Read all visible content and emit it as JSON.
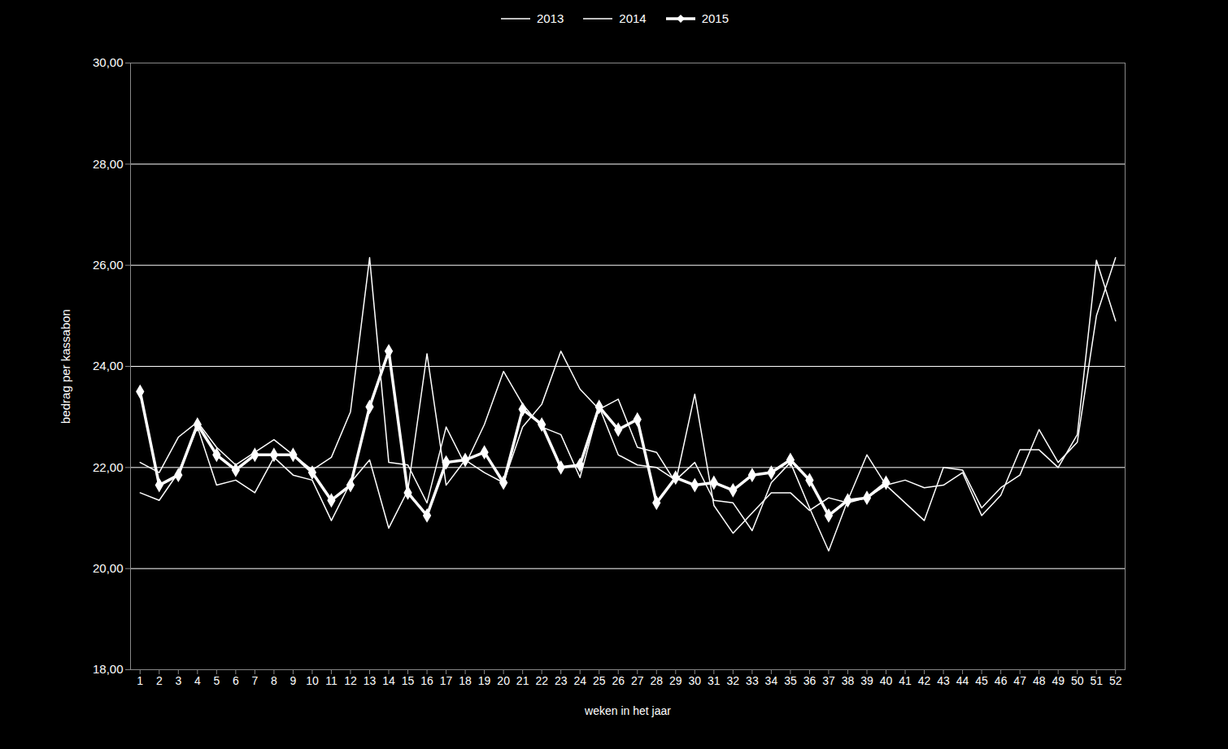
{
  "chart_data": {
    "type": "line",
    "x_label": "weken in het jaar",
    "y_label": "bedrag per kassabon",
    "x": [
      1,
      2,
      3,
      4,
      5,
      6,
      7,
      8,
      9,
      10,
      11,
      12,
      13,
      14,
      15,
      16,
      17,
      18,
      19,
      20,
      21,
      22,
      23,
      24,
      25,
      26,
      27,
      28,
      29,
      30,
      31,
      32,
      33,
      34,
      35,
      36,
      37,
      38,
      39,
      40,
      41,
      42,
      43,
      44,
      45,
      46,
      47,
      48,
      49,
      50,
      51,
      52
    ],
    "xlim": [
      0.5,
      52.5
    ],
    "xticks": [
      1,
      2,
      3,
      4,
      5,
      6,
      7,
      8,
      9,
      10,
      11,
      12,
      13,
      14,
      15,
      16,
      17,
      18,
      19,
      20,
      21,
      22,
      23,
      24,
      25,
      26,
      27,
      28,
      29,
      30,
      31,
      32,
      33,
      34,
      35,
      36,
      37,
      38,
      39,
      40,
      41,
      42,
      43,
      44,
      45,
      46,
      47,
      48,
      49,
      50,
      51,
      52
    ],
    "ylim": [
      18,
      30
    ],
    "yticks": [
      {
        "value": 18,
        "label": "18,00"
      },
      {
        "value": 20,
        "label": "20,00"
      },
      {
        "value": 22,
        "label": "22,00"
      },
      {
        "value": 24,
        "label": "24,00"
      },
      {
        "value": 26,
        "label": "26,00"
      },
      {
        "value": 28,
        "label": "28,00"
      },
      {
        "value": 30,
        "label": "30,00"
      }
    ],
    "grid": true,
    "legend": "top",
    "series": [
      {
        "name": "2013",
        "color": "#ffffff",
        "values": [
          22.1,
          21.9,
          22.6,
          22.9,
          22.4,
          22.05,
          22.3,
          22.55,
          22.25,
          21.95,
          22.2,
          23.1,
          26.15,
          22.1,
          22.05,
          21.3,
          22.8,
          22.05,
          22.85,
          23.9,
          23.25,
          22.8,
          22.65,
          21.8,
          23.2,
          22.25,
          22.05,
          22.0,
          21.75,
          22.1,
          21.35,
          21.3,
          20.75,
          21.7,
          22.1,
          21.2,
          20.35,
          21.35,
          22.25,
          21.65,
          21.75,
          21.6,
          21.65,
          21.9,
          21.05,
          21.45,
          22.35,
          22.35,
          22.0,
          22.65,
          26.1,
          24.9
        ]
      },
      {
        "name": "2014",
        "color": "#ffffff",
        "values": [
          21.5,
          21.35,
          21.9,
          22.8,
          21.65,
          21.75,
          21.5,
          22.2,
          21.85,
          21.75,
          20.95,
          21.7,
          22.15,
          20.8,
          21.55,
          24.25,
          21.65,
          22.15,
          21.9,
          21.7,
          22.8,
          23.25,
          24.3,
          23.55,
          23.15,
          23.35,
          22.4,
          22.3,
          21.7,
          23.45,
          21.25,
          20.7,
          21.1,
          21.5,
          21.5,
          21.15,
          21.4,
          21.3,
          21.4,
          21.65,
          21.3,
          20.95,
          22.0,
          21.95,
          21.2,
          21.6,
          21.85,
          22.75,
          22.1,
          22.5,
          25.0,
          26.15
        ]
      },
      {
        "name": "2015",
        "color": "#ffffff",
        "marker": "diamond",
        "values": [
          23.5,
          21.65,
          21.85,
          22.85,
          22.25,
          21.95,
          22.25,
          22.25,
          22.25,
          21.9,
          21.35,
          21.65,
          23.2,
          24.3,
          21.5,
          21.05,
          22.1,
          22.15,
          22.3,
          21.7,
          23.15,
          22.85,
          22.0,
          22.05,
          23.2,
          22.75,
          22.95,
          21.3,
          21.8,
          21.65,
          21.7,
          21.55,
          21.85,
          21.9,
          22.15,
          21.75,
          21.05,
          21.35,
          21.4,
          21.7,
          null,
          null,
          null,
          null,
          null,
          null,
          null,
          null,
          null,
          null,
          null,
          null
        ]
      }
    ]
  }
}
